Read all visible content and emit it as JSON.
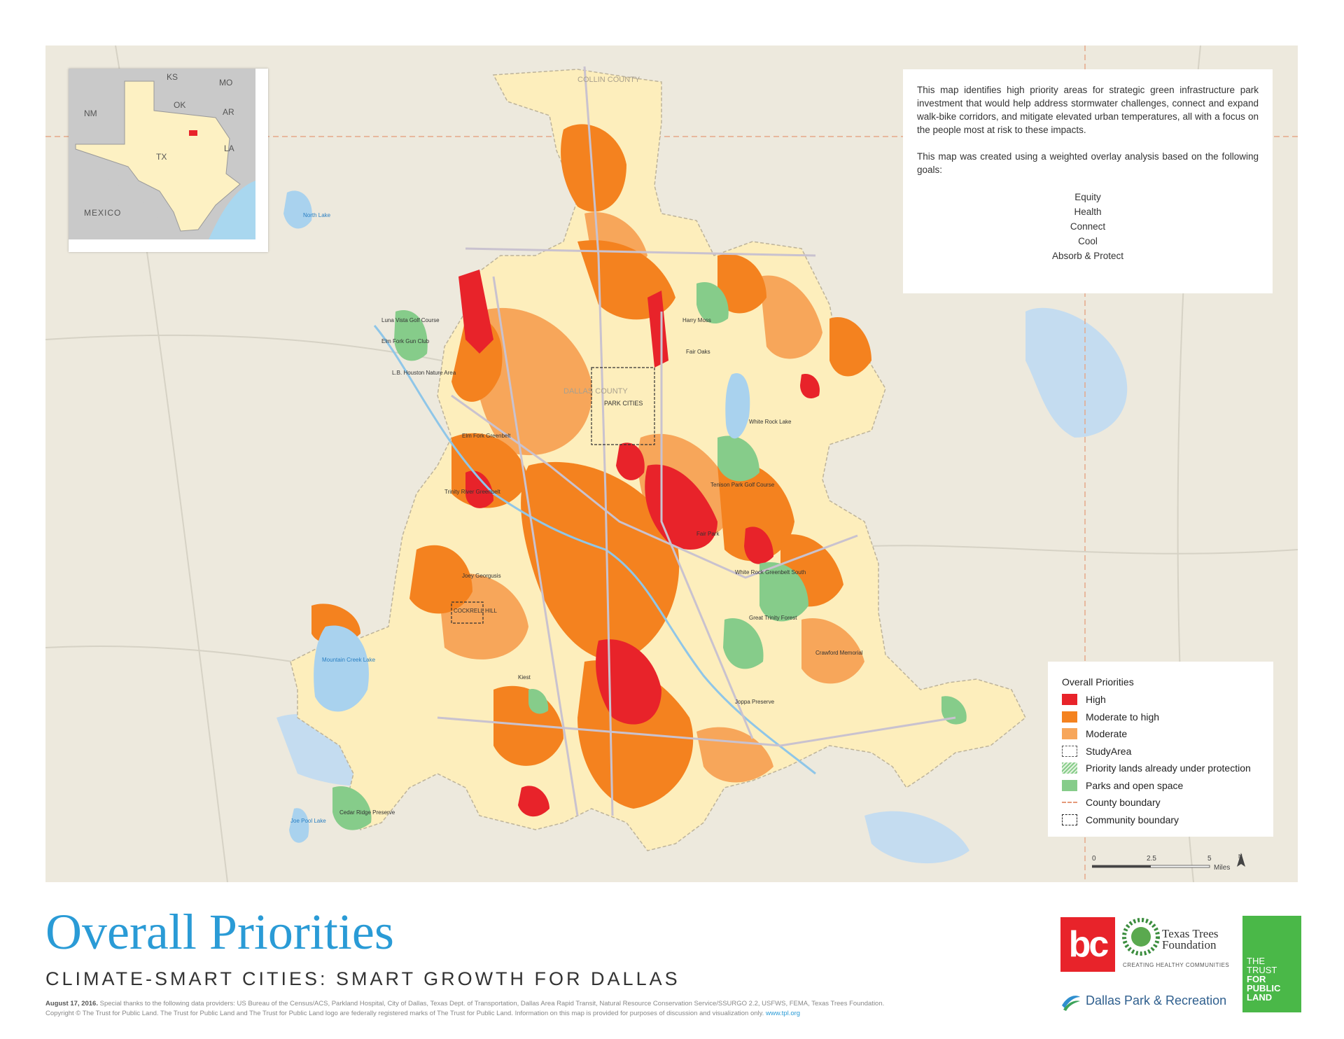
{
  "inset": {
    "states": [
      "KS",
      "MO",
      "OK",
      "NM",
      "AR",
      "TX",
      "LA"
    ],
    "country": "MEXICO"
  },
  "description": {
    "para1": "This map identifies high priority areas for strategic green infrastructure park investment that would help address stormwater challenges, connect and expand walk-bike corridors, and mitigate elevated urban temperatures, all with a focus on the people most at risk to these impacts.",
    "para2": "This map was created using a weighted overlay analysis based on the following goals:",
    "goals": [
      "Equity",
      "Health",
      "Connect",
      "Cool",
      "Absorb & Protect"
    ]
  },
  "legend": {
    "title": "Overall Priorities",
    "items": [
      {
        "label": "High",
        "color": "#e8232a"
      },
      {
        "label": "Moderate to high",
        "color": "#f4821f"
      },
      {
        "label": "Moderate",
        "color": "#f7a65a"
      },
      {
        "label": "StudyArea",
        "color": "#ffffff"
      },
      {
        "label": "Priority lands already under protection",
        "color": "#b9dfb2"
      },
      {
        "label": "Parks and open space",
        "color": "#86cc8a"
      },
      {
        "label": "County boundary",
        "color": "#e59a7a"
      },
      {
        "label": "Community boundary",
        "color": "#ffffff"
      }
    ]
  },
  "scale": {
    "ticks": [
      "0",
      "2.5",
      "5"
    ],
    "unit": "Miles",
    "north": "N"
  },
  "map_labels": {
    "collin": "COLLIN COUNTY",
    "dallas": "DALLAS COUNTY",
    "park_cities": "PARK CITIES",
    "cockrell": "COCKRELL HILL",
    "north_lake": "North Lake",
    "mountain_creek": "Mountain Creek Lake",
    "white_rock": "White Rock Lake",
    "joe_pool": "Joe Pool Lake",
    "cedar_ridge": "Cedar Ridge Preserve",
    "great_trinity": "Great Trinity Forest",
    "kiest": "Kiest",
    "harry_moss": "Harry Moss",
    "fair_oaks": "Fair Oaks",
    "tenison": "Tenison Park Golf Course",
    "white_rock_greenbelt": "White Rock Greenbelt South",
    "joppa": "Joppa Preserve",
    "crawford": "Crawford Memorial",
    "trinity_greenbelt": "Trinity River Greenbelt",
    "elm_fork": "Elm Fork Greenbelt",
    "luna_vista": "Luna Vista Golf Course",
    "elm_fork_gun": "Elm Fork Gun Club",
    "lb_houston": "L.B. Houston Nature Area",
    "joey_georgusis": "Joey Georgusis",
    "fair_park": "Fair Park"
  },
  "title": "Overall Priorities",
  "subtitle": "CLIMATE-SMART CITIES: SMART GROWTH FOR DALLAS",
  "credits": {
    "date": "August 17, 2016.",
    "line1": "Special thanks to the following data providers: US Bureau of the Census/ACS, Parkland Hospital, City of Dallas, Texas Dept. of Transportation, Dallas Area Rapid Transit, Natural Resource Conservation Service/SSURGO 2.2, USFWS, FEMA, Texas Trees Foundation.",
    "line2": "Copyright © The Trust for Public Land. The Trust for Public Land and The Trust for Public Land logo are federally registered marks of The Trust for Public Land. Information on this map is provided for purposes of discussion and visualization only.",
    "url": "www.tpl.org"
  },
  "logos": {
    "bc": "bc",
    "ttf_name": "Texas Trees Foundation",
    "ttf_tag": "CREATING HEALTHY COMMUNITIES",
    "dpr": "Dallas Park & Recreation",
    "tpl": [
      "THE",
      "TRUST",
      "FOR",
      "PUBLIC",
      "LAND"
    ]
  }
}
